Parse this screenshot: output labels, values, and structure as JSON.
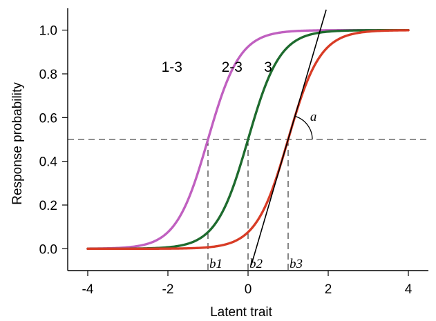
{
  "chart_data": {
    "type": "line",
    "xlabel": "Latent trait",
    "ylabel": "Response probability",
    "xlim": [
      -4.5,
      4.5
    ],
    "ylim": [
      -0.1,
      1.1
    ],
    "x_ticks": [
      -4,
      -2,
      0,
      2,
      4
    ],
    "x_tick_labels": [
      "-4",
      "-2",
      "0",
      "2",
      "4"
    ],
    "y_ticks": [
      0.0,
      0.2,
      0.4,
      0.6,
      0.8,
      1.0
    ],
    "y_tick_labels": [
      "0.0",
      "0.2",
      "0.4",
      "0.6",
      "0.8",
      "1.0"
    ],
    "grid": false,
    "slope": 2.5,
    "x_range": [
      -4,
      4
    ],
    "series": [
      {
        "name": "1-3",
        "b": -1,
        "color": "#c060c0",
        "label_x": -1.9,
        "label_y": 0.81
      },
      {
        "name": "2-3",
        "b": 0,
        "color": "#1e6b2e",
        "label_x": -0.4,
        "label_y": 0.81
      },
      {
        "name": "3",
        "b": 1,
        "color": "#d83c26",
        "label_x": 0.5,
        "label_y": 0.81
      }
    ],
    "reference_line": {
      "y": 0.5
    },
    "thresholds": [
      {
        "x": -1,
        "label": "b1"
      },
      {
        "x": 0,
        "label": "b2"
      },
      {
        "x": 1,
        "label": "b3"
      }
    ],
    "tangent": {
      "at_x": 1,
      "from_x": 0.08,
      "to_x": 1.95,
      "label": "a",
      "label_x": 1.55,
      "label_y": 0.585
    }
  }
}
